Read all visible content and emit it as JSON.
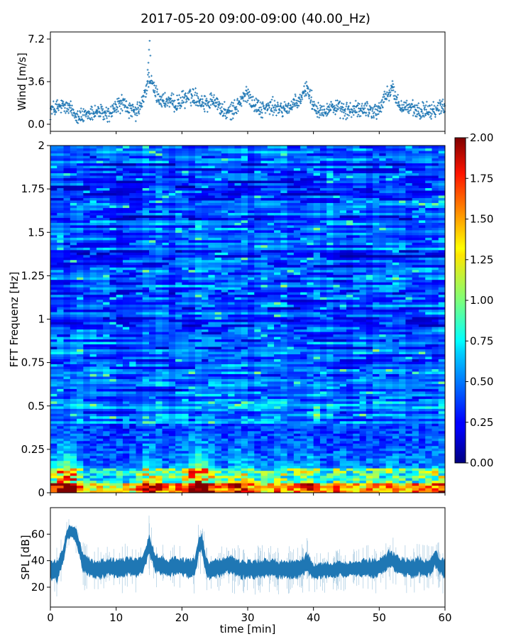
{
  "title": "2017-05-20 09:00-09:00 (40.00_Hz)",
  "colors": {
    "series": "#1f77b4"
  },
  "chart_data": [
    {
      "type": "scatter",
      "ylabel": "Wind [m/s]",
      "xlim": [
        0,
        60
      ],
      "ylim": [
        0.0,
        7.2
      ],
      "yticks": [
        0.0,
        3.6,
        7.2
      ],
      "ytick_labels": [
        "0.0",
        "3.6",
        "7.2"
      ],
      "marker": "+",
      "trend": {
        "x": [
          0,
          1,
          2,
          3,
          4,
          5,
          6,
          7,
          8,
          9,
          10,
          11,
          12,
          13,
          14,
          15,
          16,
          17,
          18,
          19,
          20,
          21,
          22,
          23,
          24,
          25,
          26,
          27,
          28,
          29,
          30,
          31,
          32,
          33,
          34,
          35,
          36,
          37,
          38,
          39,
          40,
          41,
          42,
          43,
          44,
          45,
          46,
          47,
          48,
          49,
          50,
          51,
          52,
          53,
          54,
          55,
          56,
          57,
          58,
          59,
          60
        ],
        "y": [
          1.2,
          1.4,
          1.5,
          1.3,
          0.8,
          0.6,
          0.9,
          1.1,
          0.9,
          0.8,
          1.5,
          1.8,
          1.2,
          0.9,
          1.8,
          4.0,
          2.6,
          2.0,
          1.9,
          1.7,
          2.0,
          2.3,
          2.4,
          1.9,
          1.8,
          2.2,
          1.2,
          0.9,
          1.3,
          2.0,
          2.6,
          1.7,
          1.3,
          1.4,
          1.5,
          1.2,
          1.4,
          1.6,
          2.0,
          3.2,
          1.6,
          1.2,
          1.3,
          1.5,
          1.2,
          1.1,
          1.2,
          1.2,
          1.4,
          1.1,
          1.2,
          2.4,
          3.0,
          1.6,
          1.5,
          1.3,
          1.0,
          1.3,
          1.2,
          1.4,
          1.6
        ]
      }
    },
    {
      "type": "heatmap",
      "ylabel": "FFT Frequenz [Hz]",
      "xlim": [
        0,
        60
      ],
      "ylim": [
        0,
        2
      ],
      "yticks": [
        0,
        0.25,
        0.5,
        0.75,
        1,
        1.25,
        1.5,
        1.75,
        2
      ],
      "ytick_labels": [
        "0",
        "0.25",
        "0.5",
        "0.75",
        "1",
        "1.25",
        "1.5",
        "1.75",
        "2"
      ],
      "colormap": "jet",
      "colorbar": {
        "range": [
          0.0,
          2.0
        ],
        "ticks": [
          0.0,
          0.25,
          0.5,
          0.75,
          1.0,
          1.25,
          1.5,
          1.75,
          2.0
        ],
        "tick_labels": [
          "0.00",
          "0.25",
          "0.50",
          "0.75",
          "1.00",
          "1.25",
          "1.50",
          "1.75",
          "2.00"
        ]
      },
      "low_freq_energy": {
        "x": [
          0,
          1,
          2,
          3,
          4,
          5,
          6,
          7,
          8,
          9,
          10,
          11,
          12,
          13,
          14,
          15,
          16,
          17,
          18,
          19,
          20,
          21,
          22,
          23,
          24,
          25,
          26,
          27,
          28,
          29,
          30,
          31,
          32,
          33,
          34,
          35,
          36,
          37,
          38,
          39,
          40,
          41,
          42,
          43,
          44,
          45,
          46,
          47,
          48,
          49,
          50,
          51,
          52,
          53,
          54,
          55,
          56,
          57,
          58,
          59,
          60
        ],
        "level": [
          1.3,
          1.6,
          1.8,
          2.0,
          1.6,
          1.0,
          0.9,
          1.1,
          1.0,
          0.9,
          1.0,
          1.1,
          1.0,
          1.1,
          1.4,
          1.7,
          1.4,
          1.2,
          1.1,
          1.2,
          1.3,
          1.5,
          2.0,
          2.0,
          1.7,
          1.3,
          1.1,
          1.2,
          1.4,
          1.6,
          1.4,
          1.2,
          1.1,
          1.1,
          1.2,
          1.3,
          1.3,
          1.2,
          1.2,
          1.5,
          1.4,
          1.2,
          1.0,
          1.2,
          1.3,
          1.2,
          1.1,
          1.1,
          1.2,
          1.1,
          1.1,
          1.2,
          1.4,
          1.2,
          1.1,
          1.2,
          1.2,
          1.2,
          1.3,
          1.4,
          1.3
        ]
      },
      "background_level": 0.35
    },
    {
      "type": "area",
      "ylabel": "SPL [dB]",
      "xlabel": "time [min]",
      "xlim": [
        0,
        60
      ],
      "ylim": [
        5,
        80
      ],
      "yticks": [
        20,
        40,
        60
      ],
      "ytick_labels": [
        "20",
        "40",
        "60"
      ],
      "xticks": [
        0,
        10,
        20,
        30,
        40,
        50,
        60
      ],
      "xtick_labels": [
        "0",
        "10",
        "20",
        "30",
        "40",
        "50",
        "60"
      ],
      "envelope": {
        "x": [
          0,
          1,
          2,
          2.5,
          3,
          3.5,
          4,
          4.5,
          5,
          6,
          7,
          8,
          9,
          10,
          11,
          12,
          13,
          14,
          14.5,
          15,
          15.5,
          16,
          17,
          18,
          19,
          20,
          21,
          22,
          22.5,
          23,
          23.5,
          24,
          25,
          26,
          27,
          28,
          29,
          30,
          31,
          32,
          33,
          34,
          35,
          36,
          37,
          38,
          38.5,
          39,
          39.5,
          40,
          41,
          42,
          43,
          44,
          45,
          46,
          47,
          48,
          49,
          50,
          51,
          51.5,
          52,
          53,
          54,
          55,
          56,
          57,
          58,
          58.5,
          59,
          60
        ],
        "mean": [
          33,
          32,
          45,
          60,
          62,
          61,
          58,
          48,
          38,
          35,
          33,
          34,
          35,
          34,
          35,
          36,
          35,
          37,
          44,
          52,
          45,
          38,
          36,
          35,
          36,
          35,
          34,
          36,
          50,
          55,
          40,
          33,
          34,
          35,
          38,
          35,
          33,
          34,
          33,
          34,
          35,
          34,
          33,
          34,
          33,
          34,
          36,
          38,
          35,
          32,
          32,
          33,
          33,
          34,
          33,
          34,
          34,
          35,
          34,
          35,
          38,
          42,
          40,
          36,
          35,
          34,
          36,
          34,
          36,
          42,
          38,
          33
        ],
        "spread": [
          6,
          7,
          5,
          4,
          4,
          4,
          5,
          6,
          6,
          6,
          6,
          6,
          6,
          6,
          6,
          6,
          6,
          6,
          6,
          7,
          6,
          6,
          6,
          6,
          6,
          6,
          6,
          6,
          6,
          6,
          6,
          6,
          6,
          6,
          6,
          6,
          6,
          6,
          6,
          6,
          6,
          6,
          6,
          6,
          6,
          6,
          6,
          7,
          6,
          5,
          5,
          5,
          5,
          5,
          5,
          5,
          5,
          6,
          6,
          6,
          6,
          6,
          6,
          6,
          6,
          6,
          6,
          6,
          6,
          6,
          6,
          6
        ]
      }
    }
  ]
}
